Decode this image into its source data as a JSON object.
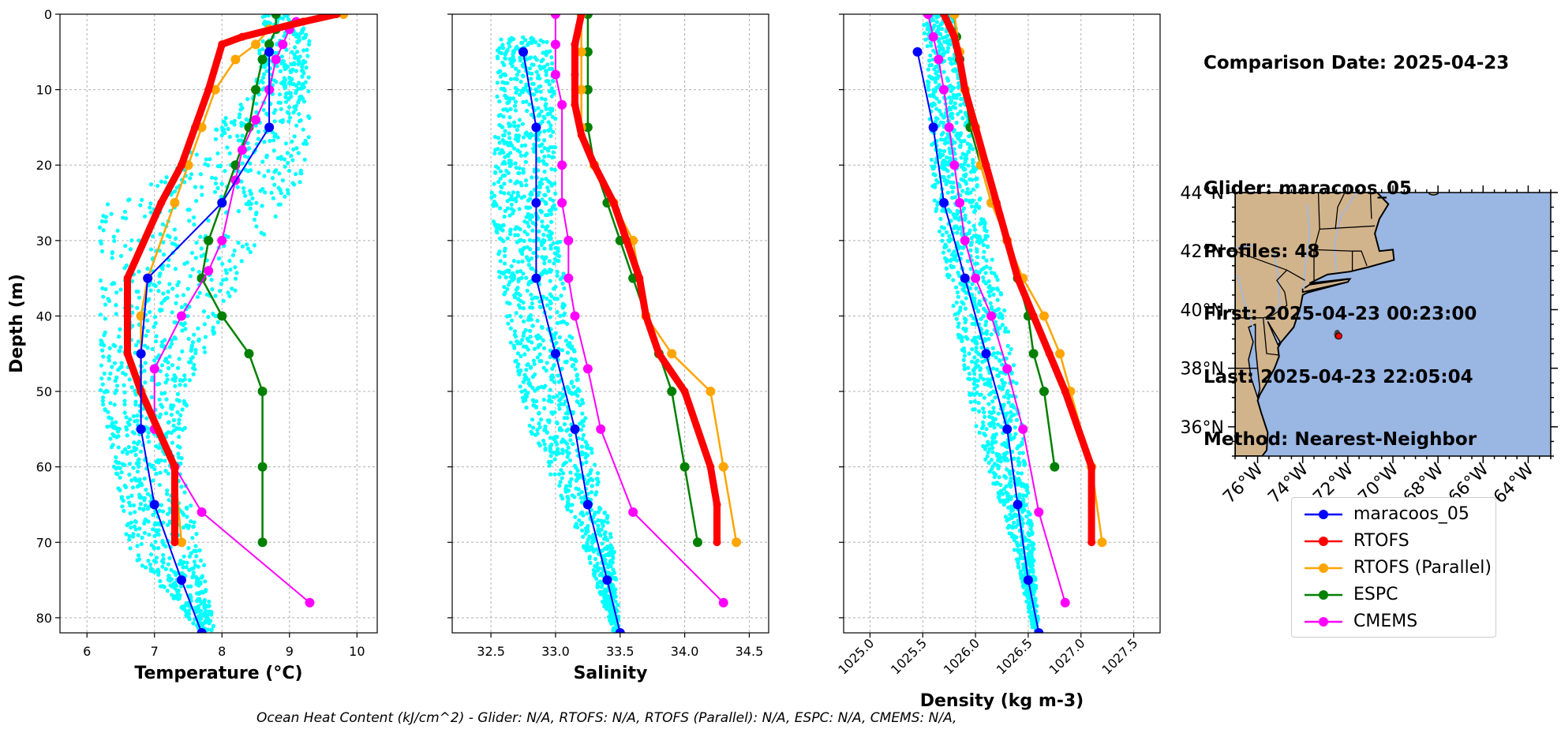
{
  "colors": {
    "glider": "#0000ff",
    "rtofs": "#ff0000",
    "rtofs_parallel": "#ffa500",
    "espc": "#008000",
    "cmems": "#ff00ff",
    "glider_scatter": "#00ffff",
    "land": "#d2b48c",
    "ocean": "#9ab6e3",
    "rivers": "#a6b8d8"
  },
  "info": {
    "comparison_date": "Comparison Date: 2025-04-23",
    "glider": "Glider: maracoos_05",
    "profiles": "Profiles: 48",
    "first": "First: 2025-04-23 00:23:00",
    "last": "Last: 2025-04-23 22:05:04",
    "method": "Method: Nearest-Neighbor"
  },
  "footer": "Ocean Heat Content (kJ/cm^2) - Glider: N/A,  RTOFS: N/A,  RTOFS (Parallel): N/A,  ESPC: N/A,  CMEMS: N/A,",
  "legend": [
    {
      "key": "glider",
      "label": "maracoos_05"
    },
    {
      "key": "rtofs",
      "label": "RTOFS"
    },
    {
      "key": "rtofs_parallel",
      "label": "RTOFS (Parallel)"
    },
    {
      "key": "espc",
      "label": "ESPC"
    },
    {
      "key": "cmems",
      "label": "CMEMS"
    }
  ],
  "chart_data": [
    {
      "type": "line",
      "title": "",
      "xlabel": "Temperature (°C)",
      "ylabel": "Depth (m)",
      "xlim": [
        5.6,
        10.3
      ],
      "ylim": [
        82,
        0
      ],
      "xticks": [
        "6",
        "7",
        "8",
        "9",
        "10"
      ],
      "yticks": [
        "0",
        "10",
        "20",
        "30",
        "40",
        "50",
        "60",
        "70",
        "80"
      ],
      "grid": true,
      "glider_scatter_range": [
        {
          "depth": 0,
          "min": 8.6,
          "max": 9.3
        },
        {
          "depth": 10,
          "min": 8.5,
          "max": 9.3
        },
        {
          "depth": 20,
          "min": 7.3,
          "max": 9.3
        },
        {
          "depth": 25,
          "min": 6.3,
          "max": 9.0
        },
        {
          "depth": 30,
          "min": 6.1,
          "max": 8.6
        },
        {
          "depth": 40,
          "min": 6.2,
          "max": 8.0
        },
        {
          "depth": 50,
          "min": 6.2,
          "max": 7.5
        },
        {
          "depth": 60,
          "min": 6.4,
          "max": 7.4
        },
        {
          "depth": 71,
          "min": 6.6,
          "max": 7.7
        },
        {
          "depth": 82,
          "min": 7.7,
          "max": 7.9
        }
      ],
      "series": [
        {
          "key": "glider",
          "x": [
            8.7,
            8.7,
            8.0,
            6.9,
            6.8,
            6.8,
            7.0,
            7.4,
            7.7
          ],
          "y": [
            5,
            15,
            25,
            35,
            45,
            55,
            65,
            75,
            82
          ]
        },
        {
          "key": "rtofs",
          "x": [
            9.7,
            9.2,
            8.3,
            8.0,
            7.8,
            7.6,
            7.4,
            7.1,
            6.6,
            6.6,
            6.6,
            6.8,
            7.3,
            7.3
          ],
          "y": [
            0,
            1,
            3,
            4,
            10,
            15,
            20,
            25,
            35,
            40,
            45,
            50,
            60,
            70
          ]
        },
        {
          "key": "rtofs_parallel",
          "x": [
            9.8,
            8.7,
            8.5,
            8.2,
            7.9,
            7.7,
            7.5,
            7.3,
            6.9,
            6.8,
            6.8,
            6.8,
            7.3,
            7.4
          ],
          "y": [
            0,
            2,
            4,
            6,
            10,
            15,
            20,
            25,
            35,
            40,
            45,
            50,
            60,
            70
          ]
        },
        {
          "key": "espc",
          "x": [
            8.8,
            8.8,
            8.7,
            8.6,
            8.5,
            8.4,
            8.2,
            8.0,
            7.8,
            7.7,
            7.7,
            8.0,
            8.4,
            8.6,
            8.6,
            8.6
          ],
          "y": [
            0,
            2,
            4,
            6,
            10,
            15,
            20,
            25,
            30,
            35,
            35,
            40,
            45,
            50,
            60,
            70
          ]
        },
        {
          "key": "cmems",
          "x": [
            9.1,
            9.0,
            8.9,
            8.8,
            8.7,
            8.5,
            8.3,
            8.2,
            8.0,
            7.8,
            7.4,
            7.0,
            7.0,
            7.3,
            7.7,
            9.3
          ],
          "y": [
            1,
            2,
            4,
            6,
            10,
            14,
            18,
            22,
            30,
            34,
            40,
            47,
            55,
            60,
            66,
            78
          ]
        }
      ]
    },
    {
      "type": "line",
      "title": "",
      "xlabel": "Salinity",
      "ylabel": "",
      "xlim": [
        32.2,
        34.65
      ],
      "ylim": [
        82,
        0
      ],
      "xticks": [
        "32.5",
        "33.0",
        "33.5",
        "34.0",
        "34.5"
      ],
      "grid": true,
      "glider_scatter_range": [
        {
          "depth": 3,
          "min": 32.55,
          "max": 32.95
        },
        {
          "depth": 10,
          "min": 32.55,
          "max": 33.0
        },
        {
          "depth": 25,
          "min": 32.5,
          "max": 33.0
        },
        {
          "depth": 40,
          "min": 32.6,
          "max": 33.1
        },
        {
          "depth": 55,
          "min": 32.8,
          "max": 33.25
        },
        {
          "depth": 70,
          "min": 33.2,
          "max": 33.45
        },
        {
          "depth": 82,
          "min": 33.45,
          "max": 33.5
        }
      ],
      "series": [
        {
          "key": "glider",
          "x": [
            32.75,
            32.85,
            32.85,
            32.85,
            33.0,
            33.15,
            33.25,
            33.4,
            33.5
          ],
          "y": [
            5,
            15,
            25,
            35,
            45,
            55,
            65,
            75,
            82
          ]
        },
        {
          "key": "rtofs",
          "x": [
            33.2,
            33.15,
            33.15,
            33.15,
            33.2,
            33.3,
            33.45,
            33.55,
            33.65,
            33.7,
            33.8,
            34.0,
            34.2,
            34.25,
            34.25
          ],
          "y": [
            0,
            4,
            8,
            12,
            16,
            20,
            25,
            30,
            35,
            40,
            45,
            50,
            60,
            65,
            70
          ]
        },
        {
          "key": "rtofs_parallel",
          "x": [
            33.2,
            33.2,
            33.2,
            33.2,
            33.3,
            33.45,
            33.6,
            33.7,
            33.9,
            34.2,
            34.3,
            34.4
          ],
          "y": [
            0,
            5,
            10,
            15,
            20,
            25,
            30,
            40,
            45,
            50,
            60,
            70
          ]
        },
        {
          "key": "espc",
          "x": [
            33.25,
            33.25,
            33.25,
            33.25,
            33.3,
            33.4,
            33.5,
            33.6,
            33.7,
            33.8,
            33.9,
            34.0,
            34.1
          ],
          "y": [
            0,
            5,
            10,
            15,
            20,
            25,
            30,
            35,
            40,
            45,
            50,
            60,
            70
          ]
        },
        {
          "key": "cmems",
          "x": [
            33.0,
            33.0,
            33.0,
            33.05,
            33.05,
            33.05,
            33.1,
            33.1,
            33.15,
            33.25,
            33.35,
            33.6,
            34.3
          ],
          "y": [
            0,
            4,
            8,
            12,
            20,
            25,
            30,
            35,
            40,
            47,
            55,
            66,
            78
          ]
        }
      ]
    },
    {
      "type": "line",
      "title": "",
      "xlabel": "Density (kg m-3)",
      "ylabel": "",
      "xlim": [
        1024.75,
        1027.75
      ],
      "ylim": [
        82,
        0
      ],
      "xticks": [
        "1025.0",
        "1025.5",
        "1026.0",
        "1026.5",
        "1027.0",
        "1027.5"
      ],
      "grid": true,
      "glider_scatter_range": [
        {
          "depth": 0,
          "min": 1025.5,
          "max": 1025.8
        },
        {
          "depth": 10,
          "min": 1025.55,
          "max": 1025.9
        },
        {
          "depth": 25,
          "min": 1025.6,
          "max": 1026.05
        },
        {
          "depth": 40,
          "min": 1025.8,
          "max": 1026.3
        },
        {
          "depth": 55,
          "min": 1026.0,
          "max": 1026.45
        },
        {
          "depth": 70,
          "min": 1026.35,
          "max": 1026.55
        },
        {
          "depth": 82,
          "min": 1026.55,
          "max": 1026.6
        }
      ],
      "series": [
        {
          "key": "glider",
          "x": [
            1025.45,
            1025.6,
            1025.7,
            1025.9,
            1026.1,
            1026.3,
            1026.4,
            1026.5,
            1026.6
          ],
          "y": [
            5,
            15,
            25,
            35,
            45,
            55,
            65,
            75,
            82
          ]
        },
        {
          "key": "rtofs",
          "x": [
            1025.7,
            1025.8,
            1025.85,
            1025.9,
            1026.0,
            1026.1,
            1026.2,
            1026.3,
            1026.4,
            1026.55,
            1026.7,
            1026.85,
            1027.1,
            1027.1
          ],
          "y": [
            0,
            3,
            6,
            10,
            15,
            20,
            25,
            30,
            35,
            40,
            45,
            50,
            60,
            70
          ]
        },
        {
          "key": "rtofs_parallel",
          "x": [
            1025.8,
            1025.85,
            1025.9,
            1026.0,
            1026.05,
            1026.15,
            1026.3,
            1026.45,
            1026.65,
            1026.8,
            1026.9,
            1027.1,
            1027.2
          ],
          "y": [
            0,
            5,
            10,
            15,
            20,
            25,
            30,
            35,
            40,
            45,
            50,
            60,
            70
          ]
        },
        {
          "key": "espc",
          "x": [
            1025.8,
            1025.82,
            1025.85,
            1025.9,
            1025.95,
            1026.05,
            1026.15,
            1026.3,
            1026.4,
            1026.5,
            1026.55,
            1026.65,
            1026.75
          ],
          "y": [
            0,
            3,
            6,
            10,
            15,
            20,
            25,
            30,
            35,
            40,
            45,
            50,
            60
          ]
        },
        {
          "key": "cmems",
          "x": [
            1025.55,
            1025.6,
            1025.65,
            1025.7,
            1025.75,
            1025.8,
            1025.85,
            1025.9,
            1026.0,
            1026.15,
            1026.3,
            1026.45,
            1026.6,
            1026.85
          ],
          "y": [
            0,
            3,
            6,
            10,
            15,
            20,
            25,
            30,
            35,
            40,
            47,
            55,
            66,
            78
          ]
        }
      ]
    }
  ],
  "map": {
    "lat_ticks": [
      "44°N",
      "42°N",
      "40°N",
      "38°N",
      "36°N"
    ],
    "lon_ticks": [
      "76°W",
      "74°W",
      "72°W",
      "70°W",
      "68°W",
      "66°W",
      "64°W"
    ],
    "lat_range": [
      35,
      44
    ],
    "lon_range": [
      -77,
      -63
    ],
    "glider_location": {
      "lat": 39.1,
      "lon": -72.4
    }
  }
}
